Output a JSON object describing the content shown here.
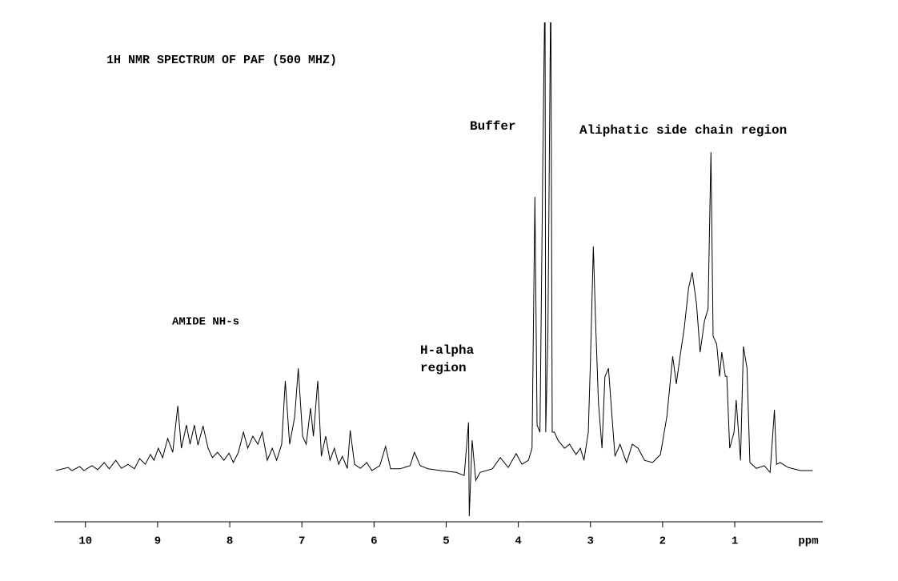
{
  "chart_data": {
    "type": "line",
    "title": "1H NMR SPECTRUM OF PAF (500 MHZ)",
    "annotations": [
      "Buffer",
      "Aliphatic side chain region",
      "AMIDE NH-s",
      [
        "H-alpha",
        "region"
      ]
    ],
    "xlabel": "ppm",
    "color": "#000000",
    "xlim": [
      10.43,
      -0.22
    ],
    "ylim": [
      -12,
      100
    ],
    "xticks": [
      10,
      9,
      8,
      7,
      6,
      5,
      4,
      3,
      2,
      1
    ],
    "x": [
      10.41,
      10.24,
      10.19,
      10.08,
      10.02,
      9.91,
      9.83,
      9.74,
      9.67,
      9.58,
      9.5,
      9.41,
      9.32,
      9.25,
      9.17,
      9.1,
      9.05,
      8.99,
      8.93,
      8.86,
      8.79,
      8.72,
      8.67,
      8.6,
      8.55,
      8.49,
      8.44,
      8.37,
      8.3,
      8.24,
      8.17,
      8.08,
      8.01,
      7.95,
      7.88,
      7.81,
      7.75,
      7.68,
      7.61,
      7.55,
      7.48,
      7.41,
      7.35,
      7.28,
      7.23,
      7.17,
      7.1,
      7.05,
      6.99,
      6.94,
      6.88,
      6.84,
      6.78,
      6.73,
      6.67,
      6.61,
      6.55,
      6.49,
      6.44,
      6.37,
      6.33,
      6.27,
      6.19,
      6.1,
      6.03,
      5.92,
      5.84,
      5.77,
      5.64,
      5.5,
      5.44,
      5.36,
      5.25,
      5.08,
      4.86,
      4.75,
      4.69,
      4.68,
      4.64,
      4.59,
      4.53,
      4.36,
      4.25,
      4.14,
      4.03,
      3.95,
      3.86,
      3.81,
      3.77,
      3.74,
      3.7,
      3.66,
      3.63,
      3.62,
      3.59,
      3.55,
      3.53,
      3.5,
      3.45,
      3.36,
      3.29,
      3.2,
      3.14,
      3.09,
      3.03,
      3.0,
      2.96,
      2.93,
      2.89,
      2.84,
      2.8,
      2.75,
      2.71,
      2.66,
      2.59,
      2.5,
      2.42,
      2.34,
      2.25,
      2.14,
      2.03,
      1.94,
      1.86,
      1.81,
      1.75,
      1.7,
      1.64,
      1.59,
      1.53,
      1.48,
      1.42,
      1.37,
      1.33,
      1.3,
      1.25,
      1.21,
      1.18,
      1.13,
      1.11,
      1.07,
      1.01,
      0.98,
      0.92,
      0.88,
      0.83,
      0.79,
      0.7,
      0.59,
      0.51,
      0.45,
      0.42,
      0.37,
      0.26,
      0.09,
      -0.08
    ],
    "values": [
      0,
      0.7,
      0,
      0.9,
      0,
      1.1,
      0.2,
      1.8,
      0.4,
      2.3,
      0.5,
      1.4,
      0.4,
      2.7,
      1.4,
      3.6,
      2.3,
      5.0,
      2.9,
      7.2,
      4.1,
      14.5,
      5.0,
      10.2,
      5.9,
      10.2,
      5.7,
      10.0,
      5.0,
      2.9,
      4.1,
      2.3,
      3.9,
      1.8,
      4.1,
      8.6,
      5.0,
      7.7,
      5.9,
      8.6,
      2.3,
      5.0,
      2.3,
      5.9,
      20.1,
      5.9,
      12.0,
      22.9,
      7.7,
      5.9,
      14.0,
      7.7,
      20.1,
      3.2,
      7.7,
      2.3,
      5.0,
      1.4,
      3.2,
      0.5,
      9.0,
      1.4,
      0.5,
      1.8,
      0,
      1.1,
      5.4,
      0.4,
      0.4,
      1.1,
      4.1,
      1.1,
      0.4,
      0,
      -0.4,
      -1.1,
      10.8,
      -10.2,
      6.8,
      -2.2,
      -0.4,
      0.4,
      2.9,
      0.7,
      3.8,
      1.4,
      2.3,
      5.0,
      61.3,
      10.2,
      8.6,
      69.5,
      110,
      8.6,
      30.1,
      110,
      8.6,
      8.6,
      6.8,
      5.0,
      5.9,
      3.6,
      5.0,
      2.3,
      8.6,
      24.7,
      50.2,
      33.9,
      15.4,
      5.0,
      21.0,
      22.9,
      14.0,
      3.2,
      5.9,
      1.8,
      5.9,
      5.0,
      2.3,
      1.8,
      3.6,
      12.2,
      25.6,
      19.4,
      26.5,
      31.9,
      40.9,
      44.4,
      37.3,
      26.5,
      33.5,
      36.2,
      71.3,
      30.1,
      28.3,
      21.1,
      26.5,
      21.1,
      21.1,
      5.0,
      8.6,
      15.8,
      2.3,
      27.8,
      22.9,
      1.8,
      0.5,
      1.1,
      -0.4,
      13.6,
      1.4,
      1.8,
      0.7,
      0,
      0
    ]
  }
}
